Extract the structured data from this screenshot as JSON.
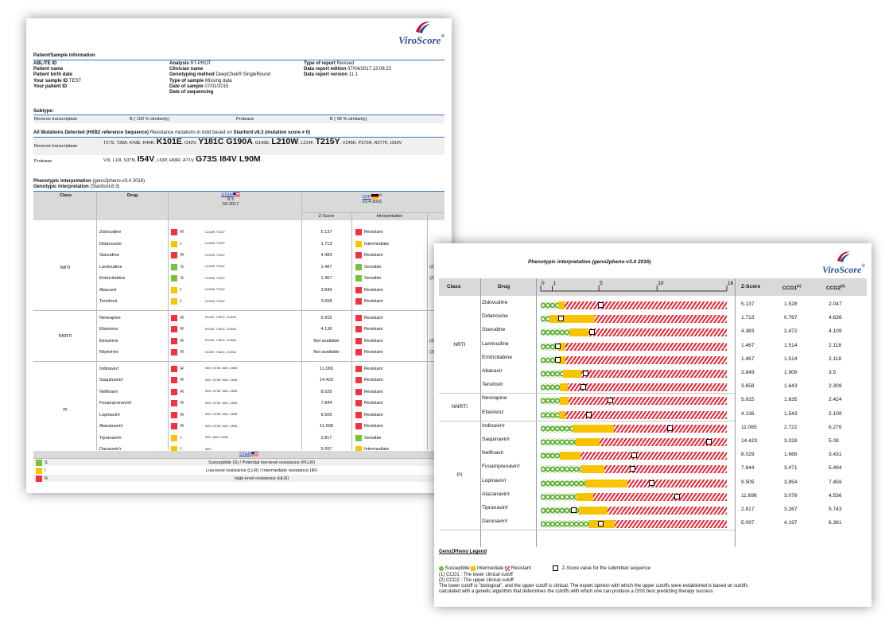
{
  "brand": "ViroScore",
  "brand_mark": "®",
  "colors": {
    "resistant": "#f2333d",
    "intermediate": "#f9c500",
    "sensible": "#78c13e",
    "accent": "#3b73b9"
  },
  "page1": {
    "section_patient": "Patient/Sample information",
    "info_col1": [
      {
        "label": "ABL/TE ID",
        "value": ""
      },
      {
        "label": "Patient name",
        "value": ""
      },
      {
        "label": "Patient birth date",
        "value": ""
      },
      {
        "label": "Your sample ID",
        "value": "TEST"
      },
      {
        "label": "Your patient ID",
        "value": ""
      }
    ],
    "info_col2": [
      {
        "label": "Analysis",
        "value": "RT-PROT"
      },
      {
        "label": "Clinician name",
        "value": ""
      },
      {
        "label": "Genotyping method",
        "value": "DeepChek® SingleRound"
      },
      {
        "label": "Type of sample",
        "value": "Missing data"
      },
      {
        "label": "Date of sample",
        "value": "07/01/2015"
      },
      {
        "label": "Date of sequencing",
        "value": ""
      }
    ],
    "info_col3": [
      {
        "label": "Type of report",
        "value": "Revised"
      },
      {
        "label": "Data report edition",
        "value": "07/04/2017,13:08:22"
      },
      {
        "label": "Data report version",
        "value": "11.1"
      }
    ],
    "subtype_head": "Subtype:",
    "subtype": {
      "rt_label": "Reverse transcriptase",
      "rt_value": "B ( 100 % similarity)",
      "pr_label": "Protease",
      "pr_value": "B ( 96 % similarity)"
    },
    "mut_head_bold": "All Mutations Detected (HXB2 reference Sequence)",
    "mut_head_mid": " Resistance mutations in bold based on ",
    "mut_head_bold2": "Stanford v8.3 (mutation score ≠ 0)",
    "mut_rt_label": "Reverse transcriptase",
    "mut_rt": [
      {
        "t": "T27S, T39A, K43E, K49R, ",
        "b": false
      },
      {
        "t": "K101E",
        "b": true
      },
      {
        "t": ", I142V, ",
        "b": false
      },
      {
        "t": "Y181C",
        "b": true
      },
      {
        "t": ", ",
        "b": false
      },
      {
        "t": "G190A",
        "b": true
      },
      {
        "t": ", G196E, ",
        "b": false
      },
      {
        "t": "L210W",
        "b": true
      },
      {
        "t": ", L214F, ",
        "b": false
      },
      {
        "t": "T215Y",
        "b": true
      },
      {
        "t": ", V245K, P272A, R277K, I293V",
        "b": false
      }
    ],
    "mut_pr_label": "Protease",
    "mut_pr": [
      {
        "t": "V3I, L10I, S37N, ",
        "b": false
      },
      {
        "t": "I54V",
        "b": true
      },
      {
        "t": ", L63P, H69R, A71V, ",
        "b": false
      },
      {
        "t": "G73S",
        "b": true
      },
      {
        "t": ", ",
        "b": false
      },
      {
        "t": "I84V",
        "b": true
      },
      {
        "t": ", ",
        "b": false
      },
      {
        "t": "L90M",
        "b": true
      }
    ],
    "pheno_title": "Phenotypic interpretation",
    "pheno_sub": " (geno2pheno-v3.4 2016)",
    "geno_title": "Genotypic interpretation",
    "geno_sub": " (Stanford-8.3)",
    "table_head": {
      "class": "Class",
      "drug": "Drug",
      "stan_link": "STAN",
      "stan_ver": "8.3",
      "stan_date": "03-2017",
      "g2p_link": "G2P",
      "g2p_sup": "(1)",
      "g2p_ver": "v3.4 2016",
      "zscore": "Z-Score",
      "interp": "Interpretation"
    },
    "groups": [
      {
        "class": "NRTI",
        "drugs": [
          {
            "name": "Zidovudine",
            "code": "R",
            "muts": "L210W, T215Y",
            "z": "5.137",
            "interp": "Resistant",
            "note": ""
          },
          {
            "name": "Didanosine",
            "code": "I",
            "muts": "L210W, T215Y",
            "z": "1.713",
            "interp": "Intermediate",
            "note": ""
          },
          {
            "name": "Stavudine",
            "code": "R",
            "muts": "L210W, T215Y",
            "z": "4.383",
            "interp": "Resistant",
            "note": ""
          },
          {
            "name": "Lamivudine",
            "code": "S",
            "muts": "L210W, T215Y",
            "z": "1.467",
            "interp": "Sensible",
            "note": "(2)"
          },
          {
            "name": "Emtricitabine",
            "code": "S",
            "muts": "L210W, T215Y",
            "z": "1.467",
            "interp": "Sensible",
            "note": "(2)"
          },
          {
            "name": "Abacavir",
            "code": "I",
            "muts": "L210W, T215Y",
            "z": "3.849",
            "interp": "Resistant",
            "note": ""
          },
          {
            "name": "Tenofovir",
            "code": "I",
            "muts": "L210W, T215Y",
            "z": "3.658",
            "interp": "Resistant",
            "note": ""
          }
        ]
      },
      {
        "class": "NNRTI",
        "drugs": [
          {
            "name": "Nevirapine",
            "code": "R",
            "muts": "K101E, Y181C, G190A",
            "z": "5.915",
            "interp": "Resistant",
            "note": ""
          },
          {
            "name": "Efavirenz",
            "code": "R",
            "muts": "K101E, Y181C, G190A",
            "z": "4.136",
            "interp": "Resistant",
            "note": ""
          },
          {
            "name": "Etravirine",
            "code": "R",
            "muts": "K101E, Y181C, G190A",
            "z": "Not available",
            "interp": "Resistant",
            "note": "(3)"
          },
          {
            "name": "Rilpivirine",
            "code": "R",
            "muts": "K101E, Y181C, G190A",
            "z": "Not available",
            "interp": "Resistant",
            "note": "(3)"
          }
        ]
      },
      {
        "class": "PI",
        "drugs": [
          {
            "name": "Indinavir/r",
            "code": "R",
            "muts": "I54V, G73S, I84V, L90M",
            "z": "11.065",
            "interp": "Resistant",
            "note": ""
          },
          {
            "name": "Saquinavir/r",
            "code": "R",
            "muts": "I54V, G73S, I84V, L90M",
            "z": "14.423",
            "interp": "Resistant",
            "note": ""
          },
          {
            "name": "Nelfinavir",
            "code": "R",
            "muts": "I54V, G73S, I84V, L90M",
            "z": "8.029",
            "interp": "Resistant",
            "note": ""
          },
          {
            "name": "Fosamprenavir/r",
            "code": "R",
            "muts": "I54V, G73S, I84V, L90M",
            "z": "7.844",
            "interp": "Resistant",
            "note": ""
          },
          {
            "name": "Lopinavir/r",
            "code": "R",
            "muts": "I54V, G73S, I84V, L90M",
            "z": "9.505",
            "interp": "Resistant",
            "note": ""
          },
          {
            "name": "Atazanavir/r",
            "code": "R",
            "muts": "I54V, G73S, I84V, L90M",
            "z": "11.698",
            "interp": "Resistant",
            "note": ""
          },
          {
            "name": "Tipranavir/r",
            "code": "I",
            "muts": "I54V, I84V, L90M",
            "z": "2.817",
            "interp": "Sensible",
            "note": ""
          },
          {
            "name": "Darunavir/r",
            "code": "I",
            "muts": "I84V",
            "z": "5.097",
            "interp": "Intermediate",
            "note": ""
          }
        ]
      }
    ],
    "legend_link": "STAN",
    "legend": [
      {
        "code": "S",
        "text": "Susceptible (S) / Potential low-level resistance (PLLR)"
      },
      {
        "code": "I",
        "text": "Low-level resistance (LLR) / Intermediate resistance (IR)"
      },
      {
        "code": "R",
        "text": "High-level resistance (HLR)"
      }
    ]
  },
  "page2": {
    "title": "Phenotypic interpretation (geno2pheno-v3.4 2016)",
    "head": {
      "class": "Class",
      "drug": "Drug",
      "zscore": "Z-Score",
      "cco1": "CCO1",
      "cco1_sup": "(1)",
      "cco2": "CCO2",
      "cco2_sup": "(2)"
    },
    "axis": {
      "min": 0,
      "max": 16,
      "ticks": [
        "0",
        "1",
        "5",
        "10",
        "16"
      ],
      "tick_values": [
        0,
        1,
        5,
        10,
        16
      ]
    },
    "groups": [
      {
        "class": "NRTI",
        "rows": [
          {
            "drug": "Zidovudine",
            "z": "5.137",
            "cco1": "1.528",
            "cco2": "2.047"
          },
          {
            "drug": "Didanosine",
            "z": "1.713",
            "cco1": "0.767",
            "cco2": "4.636"
          },
          {
            "drug": "Stavudine",
            "z": "4.383",
            "cco1": "2.472",
            "cco2": "4.109"
          },
          {
            "drug": "Lamivudine",
            "z": "1.467",
            "cco1": "1.514",
            "cco2": "2.118"
          },
          {
            "drug": "Emtricitabine",
            "z": "1.467",
            "cco1": "1.514",
            "cco2": "2.118"
          },
          {
            "drug": "Abacavir",
            "z": "3.849",
            "cco1": "1.906",
            "cco2": "3.5"
          },
          {
            "drug": "Tenofovir",
            "z": "3.658",
            "cco1": "1.643",
            "cco2": "2.309"
          }
        ]
      },
      {
        "class": "NNRTI",
        "rows": [
          {
            "drug": "Nevirapine",
            "z": "5.915",
            "cco1": "1.635",
            "cco2": "2.424"
          },
          {
            "drug": "Efavirenz",
            "z": "4.136",
            "cco1": "1.543",
            "cco2": "2.109"
          }
        ]
      },
      {
        "class": "PI",
        "rows": [
          {
            "drug": "Indinavir/r",
            "z": "11.065",
            "cco1": "2.722",
            "cco2": "6.276"
          },
          {
            "drug": "Saquinavir/r",
            "z": "14.423",
            "cco1": "3.028",
            "cco2": "5.08"
          },
          {
            "drug": "Nelfinavir",
            "z": "8.029",
            "cco1": "1.668",
            "cco2": "3.431"
          },
          {
            "drug": "Fosamprenavir/r",
            "z": "7.844",
            "cco1": "3.471",
            "cco2": "5.494"
          },
          {
            "drug": "Lopinavir/r",
            "z": "9.505",
            "cco1": "3.854",
            "cco2": "7.459"
          },
          {
            "drug": "Atazanavir/r",
            "z": "11.698",
            "cco1": "3.078",
            "cco2": "4.536"
          },
          {
            "drug": "Tipranavir/r",
            "z": "2.817",
            "cco1": "3.267",
            "cco2": "5.743"
          },
          {
            "drug": "Darunavir/r",
            "z": "5.097",
            "cco1": "4.197",
            "cco2": "6.381"
          }
        ]
      }
    ],
    "legend_title": "Geno2Pheno Legend",
    "legend_sus": "Susceptible",
    "legend_int": "Intermediate",
    "legend_res": "Resistant",
    "legend_z": "Z-Score value for the submitted sequence",
    "note1": "(1) CCO1 : The lower clinical cutoff",
    "note2": "(2) CCO2 : The upper clinical cutoff",
    "note3": "The lower cutoff is \"biological\", and the upper cutoff is clinical. The expert opinion with which the upper cutoffs were established is based on cutoffs",
    "note4": "calculated with a genetic algorithm that determines the cutoffs with which one can produce a GSS best predicting therapy success"
  }
}
